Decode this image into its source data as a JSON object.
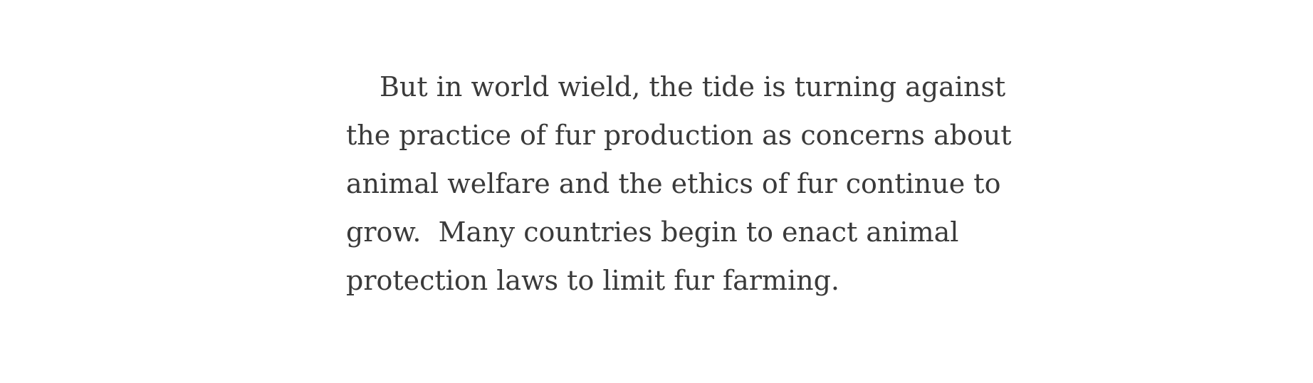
{
  "article": {
    "paragraph_lines": [
      "But in world wield, the tide is turning against",
      "the practice of fur production as concerns about",
      "animal welfare and the ethics of fur continue to",
      "grow.  Many countries begin to enact animal",
      "protection laws to limit fur farming."
    ]
  }
}
